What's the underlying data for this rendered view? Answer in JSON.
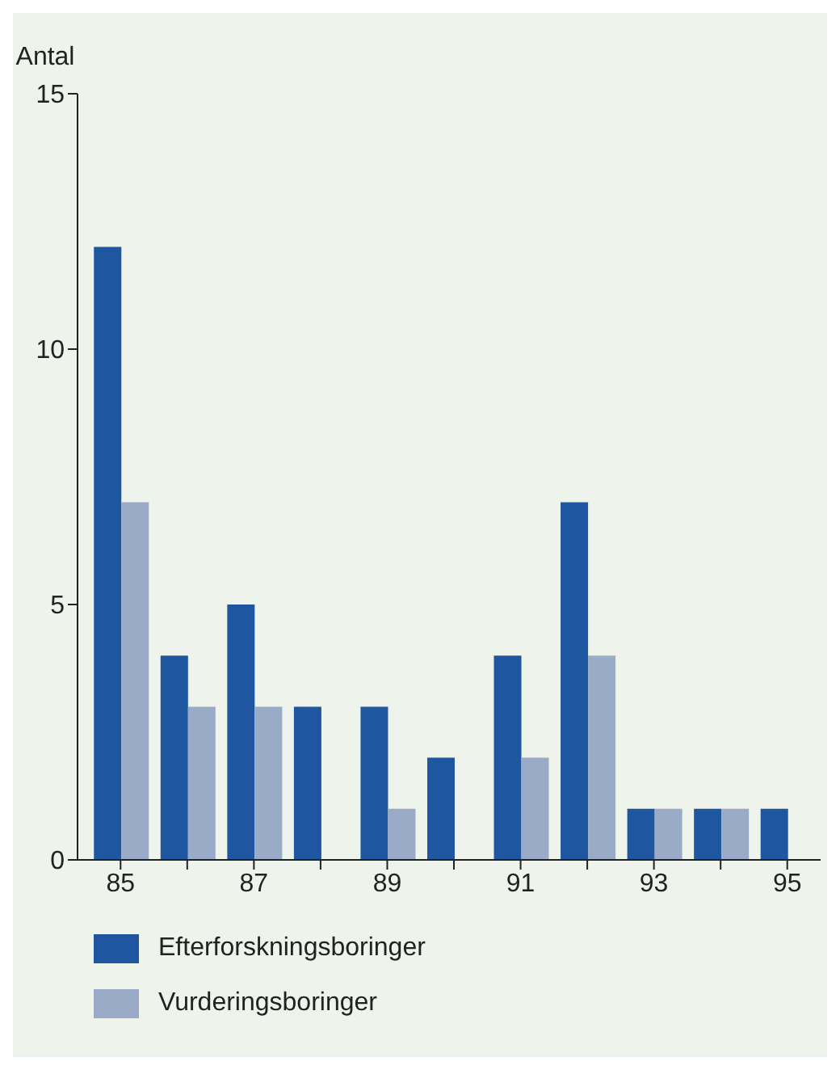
{
  "chart_data": {
    "type": "bar",
    "ylabel": "Antal",
    "categories": [
      "85",
      null,
      "87",
      null,
      "89",
      null,
      "91",
      null,
      "93",
      null,
      "95"
    ],
    "series": [
      {
        "name": "Efterforskningsboringer",
        "color": "#1f56a0",
        "values": [
          12,
          4,
          5,
          3,
          3,
          2,
          4,
          7,
          1,
          1,
          1
        ]
      },
      {
        "name": "Vurderingsboringer",
        "color": "#9aabc8",
        "values": [
          7,
          3,
          3,
          null,
          1,
          null,
          2,
          4,
          1,
          1,
          null
        ]
      }
    ],
    "ylim": [
      0,
      15
    ],
    "yticks": [
      0,
      5,
      10,
      15
    ],
    "legend": "bottom"
  }
}
